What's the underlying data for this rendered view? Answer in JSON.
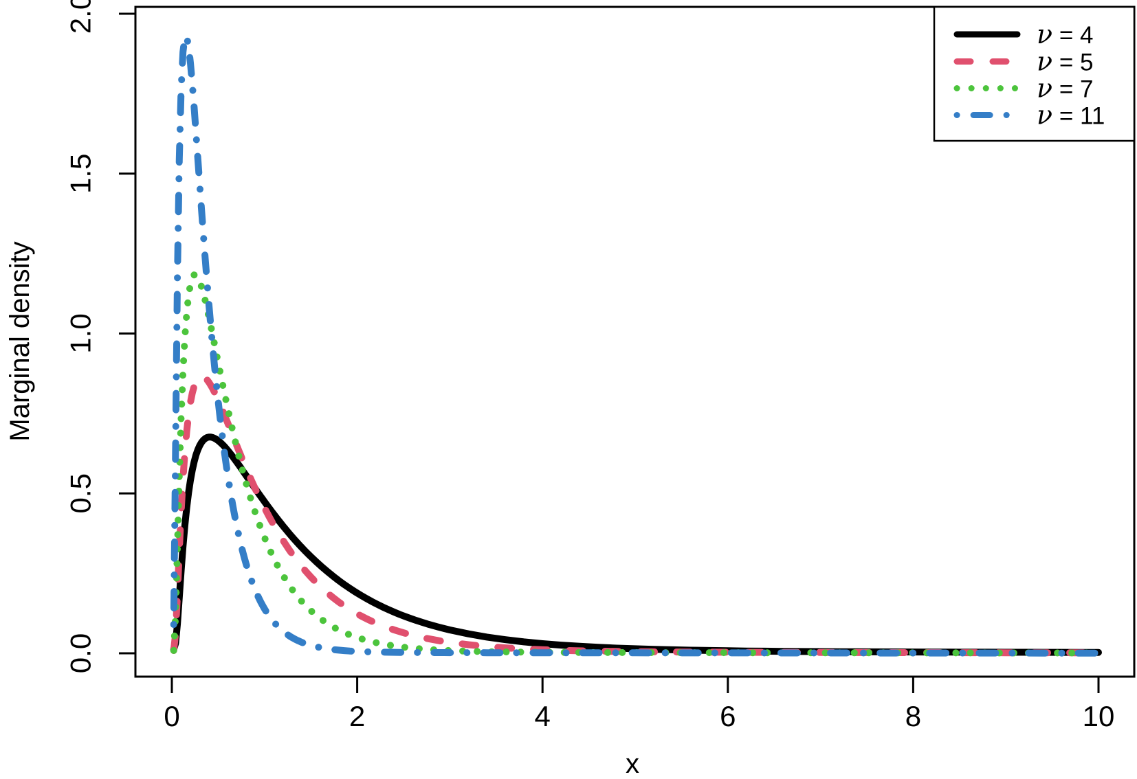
{
  "figure": {
    "background_color": "#ffffff",
    "axis_color": "#000000"
  },
  "chart_data": {
    "type": "line",
    "title": "",
    "xlabel": "x",
    "ylabel": "Marginal density",
    "xlim": [
      0,
      10
    ],
    "ylim": [
      0,
      2.0
    ],
    "x_ticks": [
      "0",
      "2",
      "4",
      "6",
      "8",
      "10"
    ],
    "x_tick_values": [
      0,
      2,
      4,
      6,
      8,
      10
    ],
    "y_ticks": [
      "0.0",
      "0.5",
      "1.0",
      "1.5",
      "2.0"
    ],
    "y_tick_values": [
      0,
      0.5,
      1.0,
      1.5,
      2.0
    ],
    "grid": false,
    "legend_position": "top-right",
    "series": [
      {
        "name": "ν = 4",
        "nu": 4,
        "color": "#000000",
        "line_style": "solid",
        "line_width": 10,
        "peak_point": {
          "x": 0.41,
          "y": 0.67
        },
        "key_points": [
          [
            0.05,
            0.05
          ],
          [
            0.2,
            0.44
          ],
          [
            0.41,
            0.67
          ],
          [
            0.91,
            0.53
          ],
          [
            2,
            0.19
          ],
          [
            3.3,
            0.06
          ],
          [
            4,
            0.03
          ],
          [
            6,
            0.012
          ],
          [
            10,
            0.006
          ]
        ],
        "curve_params": {
          "mode": 0.41,
          "peak_height": 0.665,
          "width": 0.425,
          "tail": 0.012
        }
      },
      {
        "name": "ν = 5",
        "nu": 5,
        "color": "#E0506E",
        "line_style": "dashed",
        "line_width": 10,
        "peak_point": {
          "x": 0.32,
          "y": 0.86
        },
        "key_points": [
          [
            0.05,
            0.06
          ],
          [
            0.32,
            0.86
          ],
          [
            0.86,
            0.55
          ],
          [
            1.1,
            0.39
          ],
          [
            1.8,
            0.15
          ],
          [
            2,
            0.13
          ],
          [
            4,
            0.02
          ],
          [
            10,
            0.003
          ]
        ],
        "curve_params": {
          "mode": 0.32,
          "peak_height": 0.86,
          "width": 0.45,
          "tail": 0.007
        }
      },
      {
        "name": "ν = 7",
        "nu": 7,
        "color": "#4CC43C",
        "line_style": "dotted",
        "line_width": 10,
        "peak_point": {
          "x": 0.25,
          "y": 1.18
        },
        "key_points": [
          [
            0.05,
            0.1
          ],
          [
            0.25,
            1.18
          ],
          [
            0.78,
            0.55
          ],
          [
            1.57,
            0.12
          ],
          [
            2,
            0.06
          ],
          [
            3,
            0.01
          ],
          [
            10,
            0.002
          ]
        ],
        "curve_params": {
          "mode": 0.25,
          "peak_height": 1.18,
          "width": 0.53,
          "tail": 0.0045
        }
      },
      {
        "name": "ν = 11",
        "nu": 11,
        "color": "#347EC7",
        "line_style": "dotdash",
        "line_width": 10,
        "peak_point": {
          "x": 0.15,
          "y": 1.93
        },
        "key_points": [
          [
            0.05,
            0.3
          ],
          [
            0.15,
            1.93
          ],
          [
            0.3,
            1.35
          ],
          [
            0.72,
            0.38
          ],
          [
            1,
            0.2
          ],
          [
            1.5,
            0.07
          ],
          [
            2,
            0.02
          ],
          [
            10,
            0.001
          ]
        ],
        "curve_params": {
          "mode": 0.15,
          "peak_height": 1.93,
          "width": 0.55,
          "tail": 0.003
        }
      }
    ]
  }
}
